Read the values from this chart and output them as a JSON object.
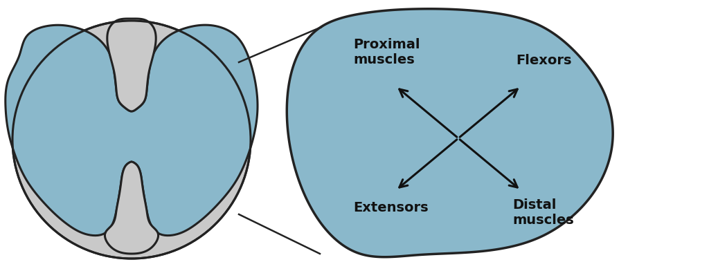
{
  "background_color": "#ffffff",
  "gray_color": "#c9c9c9",
  "blue_color": "#8ab8cb",
  "outline_color": "#222222",
  "text_color": "#111111",
  "arrow_color": "#111111",
  "labels": {
    "proximal": "Proximal\nmuscles",
    "flexors": "Flexors",
    "extensors": "Extensors",
    "distal": "Distal\nmuscles"
  },
  "label_fontsize": 14,
  "figsize": [
    10.24,
    4.06
  ],
  "dpi": 100
}
